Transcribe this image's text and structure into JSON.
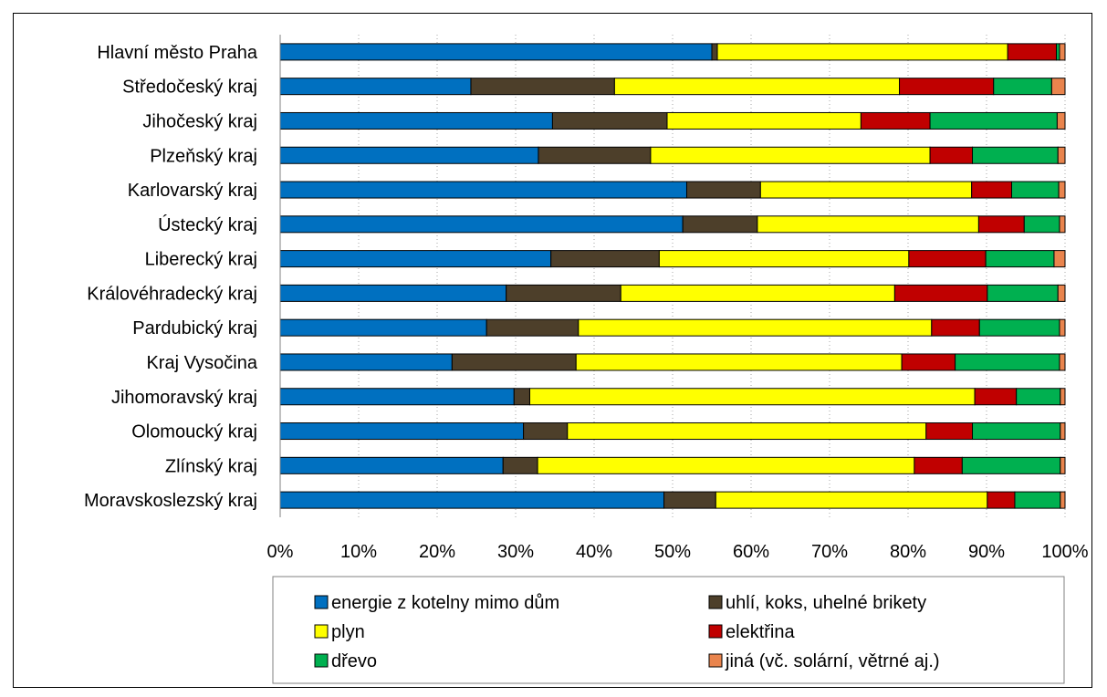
{
  "chart_data": {
    "type": "bar",
    "orientation": "horizontal",
    "stacked": "percent",
    "categories": [
      "Hlavní město Praha",
      "Středočeský kraj",
      "Jihočeský kraj",
      "Plzeňský kraj",
      "Karlovarský kraj",
      "Ústecký kraj",
      "Liberecký kraj",
      "Královéhradecký kraj",
      "Pardubický kraj",
      "Kraj Vysočina",
      "Jihomoravský kraj",
      "Olomoucký kraj",
      "Zlínský kraj",
      "Moravskoslezský kraj"
    ],
    "series": [
      {
        "name": "energie z kotelny mimo dům",
        "color": "#0070C0",
        "values": [
          55,
          24.3,
          34.7,
          32.9,
          51.8,
          51.3,
          34.5,
          28.8,
          26.3,
          21.9,
          29.8,
          31,
          28.4,
          48.9
        ]
      },
      {
        "name": "uhlí, koks, uhelné brikety",
        "color": "#4D3F2A",
        "values": [
          0.7,
          18.3,
          14.6,
          14.3,
          9.4,
          9.5,
          13.8,
          14.6,
          11.7,
          15.8,
          2,
          5.6,
          4.4,
          6.6
        ]
      },
      {
        "name": "plyn",
        "color": "#FFFF00",
        "values": [
          37,
          36.3,
          24.7,
          35.6,
          26.9,
          28.2,
          31.8,
          34.9,
          45,
          41.5,
          56.7,
          45.7,
          48,
          34.6
        ]
      },
      {
        "name": "elektřina",
        "color": "#C00000",
        "values": [
          6.2,
          12,
          8.8,
          5.4,
          5.1,
          5.8,
          9.8,
          11.8,
          6.1,
          6.8,
          5.3,
          5.9,
          6.1,
          3.5
        ]
      },
      {
        "name": "dřevo",
        "color": "#00B050",
        "values": [
          0.4,
          7.4,
          16.2,
          10.9,
          6,
          4.5,
          8.7,
          9,
          10.2,
          13.3,
          5.6,
          11.2,
          12.5,
          5.8
        ]
      },
      {
        "name": "jiná (vč. solární, větrné aj.)",
        "color": "#E9844D",
        "values": [
          0.7,
          1.7,
          1,
          0.9,
          0.8,
          0.7,
          1.4,
          0.9,
          0.7,
          0.7,
          0.6,
          0.6,
          0.6,
          0.6
        ]
      }
    ],
    "xlim": [
      0,
      100
    ],
    "x_ticks": [
      "0%",
      "10%",
      "20%",
      "30%",
      "40%",
      "50%",
      "60%",
      "70%",
      "80%",
      "90%",
      "100%"
    ],
    "grid": "vertical-dotted",
    "legend": "bottom",
    "title": "",
    "xlabel": "",
    "ylabel": ""
  }
}
